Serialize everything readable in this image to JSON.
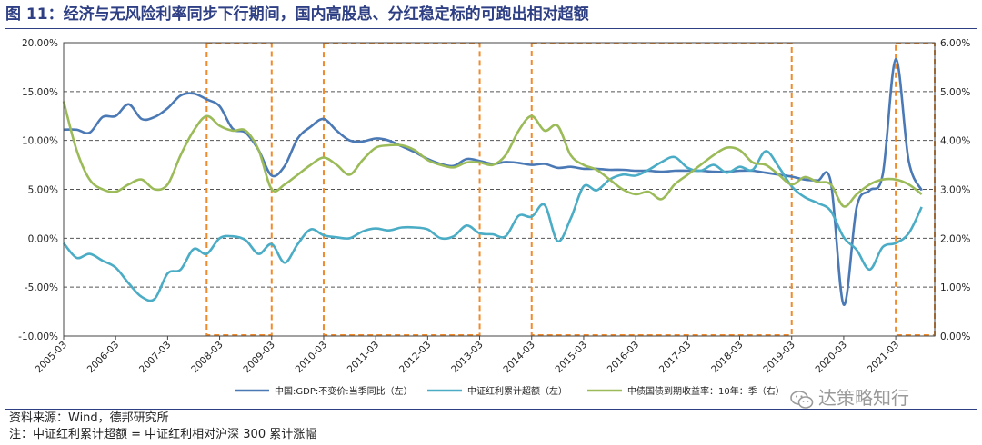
{
  "header": {
    "title": "图 11：经济与无风险利率同步下行期间，国内高股息、分红稳定标的可跑出相对超额"
  },
  "footer": {
    "source": "资料来源：Wind，德邦研究所",
    "note": "注：中证红利累计超额 = 中证红利相对沪深 300 累计涨幅"
  },
  "watermark": {
    "text": "达策略知行",
    "icon": "wechat-icon"
  },
  "chart_data": {
    "type": "line",
    "title": "",
    "x_ticks": [
      "2005-03",
      "2006-03",
      "2007-03",
      "2008-03",
      "2009-03",
      "2010-03",
      "2011-03",
      "2012-03",
      "2013-03",
      "2014-03",
      "2015-03",
      "2016-03",
      "2017-03",
      "2018-03",
      "2019-03",
      "2020-03",
      "2021-03"
    ],
    "x_range": [
      "2005-03",
      "2021-12"
    ],
    "y_left": {
      "ticks": [
        "-10.00%",
        "-5.00%",
        "0.00%",
        "5.00%",
        "10.00%",
        "15.00%",
        "20.00%"
      ],
      "range": [
        -10,
        20
      ],
      "unit": "%"
    },
    "y_right": {
      "ticks": [
        "0.00%",
        "1.00%",
        "2.00%",
        "3.00%",
        "4.00%",
        "5.00%",
        "6.00%"
      ],
      "range": [
        0,
        6
      ],
      "unit": "%"
    },
    "grid": "horizontal dashed",
    "legend_position": "bottom",
    "highlight_periods": [
      {
        "start": "2007-12",
        "end": "2009-03"
      },
      {
        "start": "2010-03",
        "end": "2013-03"
      },
      {
        "start": "2014-03",
        "end": "2019-03"
      },
      {
        "start": "2021-03",
        "end": "2021-12"
      }
    ],
    "highlight_color": "#f08a2c",
    "series": [
      {
        "name": "中国:GDP:不变价:当季同比（左）",
        "axis": "left",
        "color": "#4a79b5",
        "points": [
          [
            "2005-03",
            11.1
          ],
          [
            "2005-06",
            11.1
          ],
          [
            "2005-09",
            10.8
          ],
          [
            "2005-12",
            12.4
          ],
          [
            "2006-03",
            12.5
          ],
          [
            "2006-06",
            13.7
          ],
          [
            "2006-09",
            12.2
          ],
          [
            "2006-12",
            12.4
          ],
          [
            "2007-03",
            13.3
          ],
          [
            "2007-06",
            14.6
          ],
          [
            "2007-09",
            14.8
          ],
          [
            "2007-12",
            14.2
          ],
          [
            "2008-03",
            13.5
          ],
          [
            "2008-06",
            11.2
          ],
          [
            "2008-09",
            10.8
          ],
          [
            "2008-12",
            9.0
          ],
          [
            "2009-03",
            6.4
          ],
          [
            "2009-06",
            7.4
          ],
          [
            "2009-09",
            10.2
          ],
          [
            "2009-12",
            11.4
          ],
          [
            "2010-03",
            12.2
          ],
          [
            "2010-06",
            11.0
          ],
          [
            "2010-09",
            10.0
          ],
          [
            "2010-12",
            9.9
          ],
          [
            "2011-03",
            10.2
          ],
          [
            "2011-06",
            10.0
          ],
          [
            "2011-09",
            9.4
          ],
          [
            "2011-12",
            8.8
          ],
          [
            "2012-03",
            8.1
          ],
          [
            "2012-06",
            7.6
          ],
          [
            "2012-09",
            7.4
          ],
          [
            "2012-12",
            8.1
          ],
          [
            "2013-03",
            7.9
          ],
          [
            "2013-06",
            7.6
          ],
          [
            "2013-09",
            7.8
          ],
          [
            "2013-12",
            7.7
          ],
          [
            "2014-03",
            7.5
          ],
          [
            "2014-06",
            7.6
          ],
          [
            "2014-09",
            7.2
          ],
          [
            "2014-12",
            7.3
          ],
          [
            "2015-03",
            7.1
          ],
          [
            "2015-06",
            7.1
          ],
          [
            "2015-09",
            7.0
          ],
          [
            "2015-12",
            7.0
          ],
          [
            "2016-03",
            6.9
          ],
          [
            "2016-06",
            6.9
          ],
          [
            "2016-09",
            6.8
          ],
          [
            "2016-12",
            6.9
          ],
          [
            "2017-03",
            6.9
          ],
          [
            "2017-06",
            6.9
          ],
          [
            "2017-09",
            6.8
          ],
          [
            "2017-12",
            6.8
          ],
          [
            "2018-03",
            6.9
          ],
          [
            "2018-06",
            6.9
          ],
          [
            "2018-09",
            6.7
          ],
          [
            "2018-12",
            6.5
          ],
          [
            "2019-03",
            6.3
          ],
          [
            "2019-06",
            6.0
          ],
          [
            "2019-09",
            5.9
          ],
          [
            "2019-12",
            5.8
          ],
          [
            "2020-03",
            -6.8
          ],
          [
            "2020-06",
            3.2
          ],
          [
            "2020-09",
            4.9
          ],
          [
            "2020-12",
            6.5
          ],
          [
            "2021-03",
            18.3
          ],
          [
            "2021-06",
            7.9
          ],
          [
            "2021-09",
            4.9
          ]
        ]
      },
      {
        "name": "中证红利累计超额（左）",
        "axis": "left",
        "color": "#4bacc6",
        "points": [
          [
            "2005-03",
            -0.5
          ],
          [
            "2005-06",
            -2.0
          ],
          [
            "2005-09",
            -1.6
          ],
          [
            "2005-12",
            -2.3
          ],
          [
            "2006-03",
            -3.0
          ],
          [
            "2006-06",
            -4.6
          ],
          [
            "2006-09",
            -6.0
          ],
          [
            "2006-12",
            -6.2
          ],
          [
            "2007-03",
            -3.6
          ],
          [
            "2007-06",
            -3.2
          ],
          [
            "2007-09",
            -1.1
          ],
          [
            "2007-12",
            -1.6
          ],
          [
            "2008-03",
            0.0
          ],
          [
            "2008-06",
            0.2
          ],
          [
            "2008-09",
            -0.2
          ],
          [
            "2008-12",
            -1.6
          ],
          [
            "2009-03",
            -0.6
          ],
          [
            "2009-06",
            -2.5
          ],
          [
            "2009-09",
            -0.6
          ],
          [
            "2009-12",
            0.9
          ],
          [
            "2010-03",
            0.3
          ],
          [
            "2010-06",
            0.1
          ],
          [
            "2010-09",
            0.0
          ],
          [
            "2010-12",
            0.7
          ],
          [
            "2011-03",
            1.0
          ],
          [
            "2011-06",
            0.8
          ],
          [
            "2011-09",
            1.1
          ],
          [
            "2011-12",
            1.1
          ],
          [
            "2012-03",
            0.9
          ],
          [
            "2012-06",
            0.0
          ],
          [
            "2012-09",
            0.2
          ],
          [
            "2012-12",
            1.3
          ],
          [
            "2013-03",
            0.5
          ],
          [
            "2013-06",
            0.4
          ],
          [
            "2013-09",
            0.2
          ],
          [
            "2013-12",
            2.3
          ],
          [
            "2014-03",
            2.2
          ],
          [
            "2014-06",
            3.4
          ],
          [
            "2014-09",
            -0.3
          ],
          [
            "2014-12",
            2.0
          ],
          [
            "2015-03",
            5.3
          ],
          [
            "2015-06",
            4.9
          ],
          [
            "2015-09",
            6.0
          ],
          [
            "2015-12",
            6.5
          ],
          [
            "2016-03",
            6.4
          ],
          [
            "2016-06",
            7.0
          ],
          [
            "2016-09",
            7.8
          ],
          [
            "2016-12",
            8.3
          ],
          [
            "2017-03",
            7.2
          ],
          [
            "2017-06",
            6.9
          ],
          [
            "2017-09",
            7.5
          ],
          [
            "2017-12",
            6.7
          ],
          [
            "2018-03",
            7.3
          ],
          [
            "2018-06",
            7.0
          ],
          [
            "2018-09",
            8.9
          ],
          [
            "2018-12",
            7.3
          ],
          [
            "2019-03",
            5.3
          ],
          [
            "2019-06",
            4.2
          ],
          [
            "2019-09",
            3.6
          ],
          [
            "2019-12",
            2.8
          ],
          [
            "2020-03",
            0.1
          ],
          [
            "2020-06",
            -1.2
          ],
          [
            "2020-09",
            -3.2
          ],
          [
            "2020-12",
            -0.9
          ],
          [
            "2021-03",
            -0.5
          ],
          [
            "2021-06",
            0.5
          ],
          [
            "2021-09",
            3.2
          ]
        ]
      },
      {
        "name": "中债国债到期收益率：10年：季（右）",
        "axis": "right",
        "color": "#9bbb59",
        "points": [
          [
            "2005-03",
            4.8
          ],
          [
            "2005-06",
            3.8
          ],
          [
            "2005-09",
            3.2
          ],
          [
            "2005-12",
            3.0
          ],
          [
            "2006-03",
            2.95
          ],
          [
            "2006-06",
            3.1
          ],
          [
            "2006-09",
            3.2
          ],
          [
            "2006-12",
            3.0
          ],
          [
            "2007-03",
            3.1
          ],
          [
            "2007-06",
            3.7
          ],
          [
            "2007-09",
            4.2
          ],
          [
            "2007-12",
            4.5
          ],
          [
            "2008-03",
            4.3
          ],
          [
            "2008-06",
            4.2
          ],
          [
            "2008-09",
            4.2
          ],
          [
            "2008-12",
            3.8
          ],
          [
            "2009-03",
            3.0
          ],
          [
            "2009-06",
            3.1
          ],
          [
            "2009-09",
            3.3
          ],
          [
            "2009-12",
            3.5
          ],
          [
            "2010-03",
            3.65
          ],
          [
            "2010-06",
            3.5
          ],
          [
            "2010-09",
            3.3
          ],
          [
            "2010-12",
            3.6
          ],
          [
            "2011-03",
            3.85
          ],
          [
            "2011-06",
            3.9
          ],
          [
            "2011-09",
            3.9
          ],
          [
            "2011-12",
            3.8
          ],
          [
            "2012-03",
            3.6
          ],
          [
            "2012-06",
            3.5
          ],
          [
            "2012-09",
            3.45
          ],
          [
            "2012-12",
            3.55
          ],
          [
            "2013-03",
            3.55
          ],
          [
            "2013-06",
            3.5
          ],
          [
            "2013-09",
            3.7
          ],
          [
            "2013-12",
            4.2
          ],
          [
            "2014-03",
            4.5
          ],
          [
            "2014-06",
            4.2
          ],
          [
            "2014-09",
            4.3
          ],
          [
            "2014-12",
            3.7
          ],
          [
            "2015-03",
            3.5
          ],
          [
            "2015-06",
            3.4
          ],
          [
            "2015-09",
            3.2
          ],
          [
            "2015-12",
            3.0
          ],
          [
            "2016-03",
            2.9
          ],
          [
            "2016-06",
            2.95
          ],
          [
            "2016-09",
            2.8
          ],
          [
            "2016-12",
            3.1
          ],
          [
            "2017-03",
            3.3
          ],
          [
            "2017-06",
            3.5
          ],
          [
            "2017-09",
            3.7
          ],
          [
            "2017-12",
            3.85
          ],
          [
            "2018-03",
            3.8
          ],
          [
            "2018-06",
            3.55
          ],
          [
            "2018-09",
            3.5
          ],
          [
            "2018-12",
            3.3
          ],
          [
            "2019-03",
            3.1
          ],
          [
            "2019-06",
            3.25
          ],
          [
            "2019-09",
            3.15
          ],
          [
            "2019-12",
            3.1
          ],
          [
            "2020-03",
            2.65
          ],
          [
            "2020-06",
            2.9
          ],
          [
            "2020-09",
            3.1
          ],
          [
            "2020-12",
            3.2
          ],
          [
            "2021-03",
            3.2
          ],
          [
            "2021-06",
            3.1
          ],
          [
            "2021-09",
            2.9
          ]
        ]
      }
    ]
  }
}
